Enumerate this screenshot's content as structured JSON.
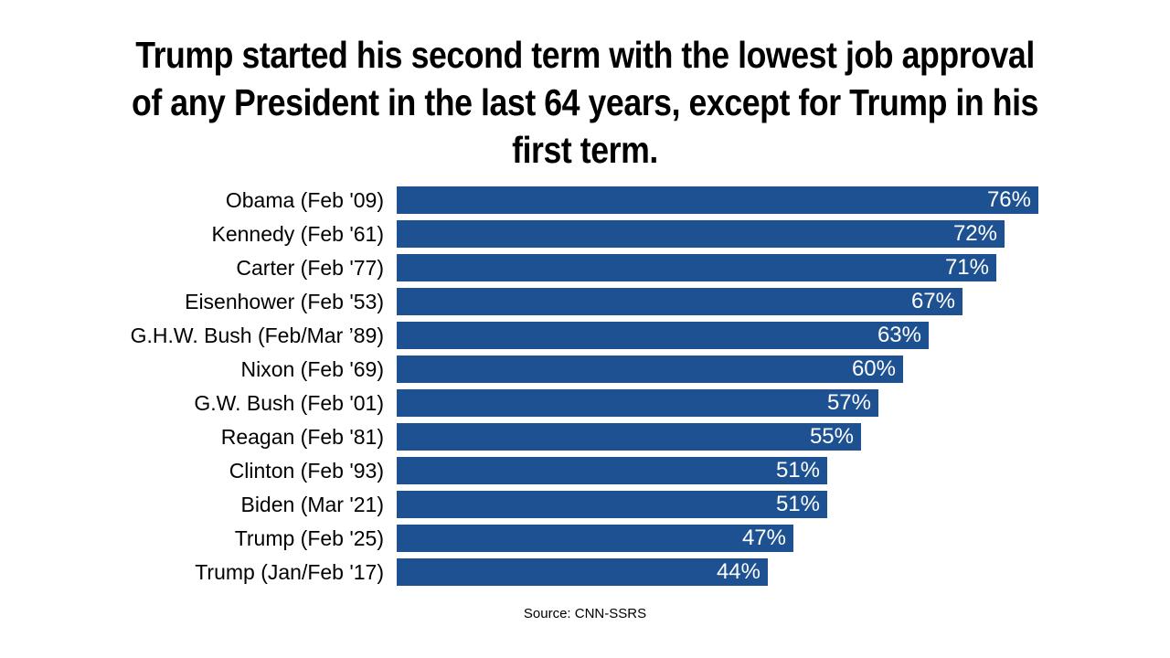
{
  "page": {
    "title_lines": [
      "Trump started his second term with the lowest job approval",
      "of any President in the last 64 years, except for Trump in his",
      "first term."
    ],
    "source": "Source: CNN-SSRS"
  },
  "chart_data": {
    "type": "bar",
    "orientation": "horizontal",
    "title": "Trump started his second term with the lowest job approval of any President in the last 64 years, except for Trump in his first term.",
    "categories": [
      "Obama (Feb '09)",
      "Kennedy (Feb '61)",
      "Carter (Feb '77)",
      "Eisenhower (Feb '53)",
      "G.H.W. Bush (Feb/Mar ’89)",
      "Nixon (Feb '69)",
      "G.W. Bush (Feb '01)",
      "Reagan (Feb '81)",
      "Clinton (Feb '93)",
      "Biden (Mar '21)",
      "Trump (Feb '25)",
      "Trump (Jan/Feb '17)"
    ],
    "values": [
      76,
      72,
      71,
      67,
      63,
      60,
      57,
      55,
      51,
      51,
      47,
      44
    ],
    "value_suffix": "%",
    "xlim": [
      0,
      76
    ],
    "bar_color": "#1e5191",
    "value_label_color": "#ffffff",
    "grid": false,
    "legend": false,
    "source": "Source: CNN-SSRS"
  }
}
